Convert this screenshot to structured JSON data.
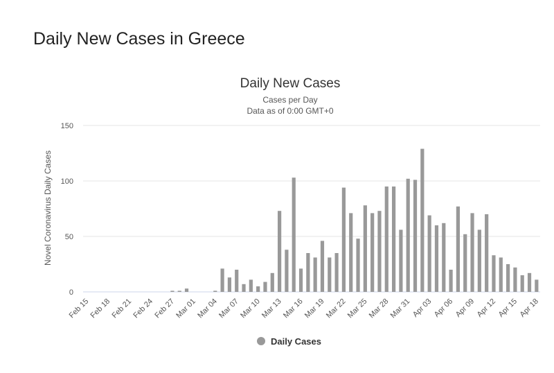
{
  "page_title": "Daily New Cases in Greece",
  "chart_data": {
    "type": "bar",
    "title": "Daily New Cases",
    "subtitle": [
      "Cases per Day",
      "Data as of 0:00 GMT+0"
    ],
    "y_label": "Novel Coronavirus Daily Cases",
    "categories": [
      "Feb 15",
      null,
      null,
      "Feb 18",
      null,
      null,
      "Feb 21",
      null,
      null,
      "Feb 24",
      null,
      null,
      "Feb 27",
      null,
      null,
      "Mar 01",
      null,
      null,
      "Mar 04",
      null,
      null,
      "Mar 07",
      null,
      null,
      "Mar 10",
      null,
      null,
      "Mar 13",
      null,
      null,
      "Mar 16",
      null,
      null,
      "Mar 19",
      null,
      null,
      "Mar 22",
      null,
      null,
      "Mar 25",
      null,
      null,
      "Mar 28",
      null,
      null,
      "Mar 31",
      null,
      null,
      "Apr 03",
      null,
      null,
      "Apr 06",
      null,
      null,
      "Apr 09",
      null,
      null,
      "Apr 12",
      null,
      null,
      "Apr 15",
      null,
      null,
      "Apr 18"
    ],
    "series": [
      {
        "name": "Daily Cases",
        "color": "#999999",
        "values": [
          0,
          0,
          0,
          0,
          0,
          0,
          0,
          0,
          0,
          0,
          0,
          0,
          1,
          1,
          3,
          0,
          0,
          0,
          1,
          21,
          13,
          20,
          7,
          11,
          5,
          9,
          17,
          73,
          38,
          103,
          21,
          35,
          31,
          46,
          31,
          35,
          94,
          71,
          48,
          78,
          71,
          73,
          95,
          95,
          56,
          102,
          101,
          129,
          69,
          60,
          62,
          20,
          77,
          52,
          71,
          56,
          70,
          33,
          31,
          25,
          22,
          15,
          17,
          11
        ]
      }
    ],
    "ylim": [
      0,
      150
    ],
    "yticks": [
      0,
      50,
      100,
      150
    ],
    "grid": true
  }
}
